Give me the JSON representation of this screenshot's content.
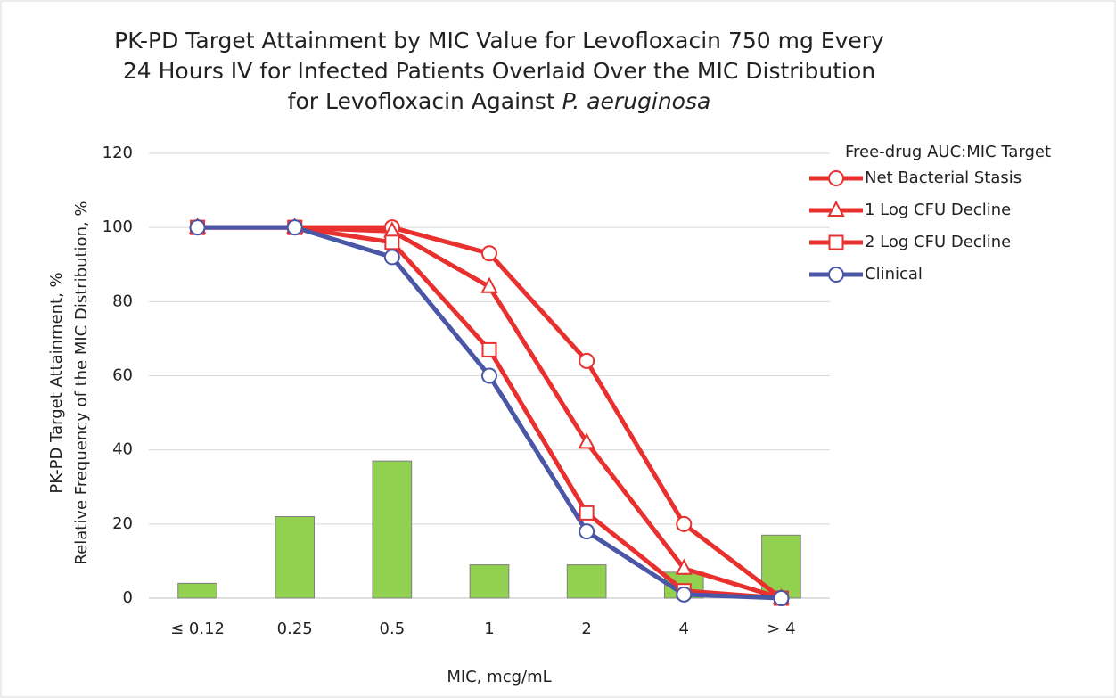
{
  "chart_data": {
    "type": "combo",
    "title": [
      "PK-PD Target Attainment by MIC Value for Levofloxacin 750 mg Every",
      "24 Hours IV for Infected Patients Overlaid Over the MIC Distribution",
      "for Levofloxacin Against "
    ],
    "title_italic": "P. aeruginosa",
    "x_label": "MIC, mcg/mL",
    "y_label": [
      "PK-PD Target Attainment, %",
      "Relative Frequency of the MIC Distribution, %"
    ],
    "categories": [
      "≤ 0.12",
      "0.25",
      "0.5",
      "1",
      "2",
      "4",
      "> 4"
    ],
    "bars": {
      "values": [
        4,
        22,
        37,
        9,
        9,
        7,
        17
      ],
      "color": "#92d050",
      "edge": "#7f7f7f"
    },
    "legend_title": "Free-drug AUC:MIC Target",
    "legend": "right",
    "series": [
      {
        "name": "Net Bacterial Stasis",
        "color": "#e8302f",
        "marker": "circle",
        "values": [
          100,
          100,
          100,
          93,
          64,
          20,
          0
        ]
      },
      {
        "name": "1 Log CFU Decline",
        "color": "#e8302f",
        "marker": "triangle",
        "values": [
          100,
          100,
          99,
          84,
          42,
          8,
          0
        ]
      },
      {
        "name": "2 Log CFU Decline",
        "color": "#e8302f",
        "marker": "square",
        "values": [
          100,
          100,
          96,
          67,
          23,
          2,
          0
        ]
      },
      {
        "name": "Clinical",
        "color": "#4a56a6",
        "marker": "circle",
        "values": [
          100,
          100,
          92,
          60,
          18,
          1,
          0
        ]
      }
    ],
    "ylim": [
      0,
      120
    ],
    "yticks": [
      0,
      20,
      40,
      60,
      80,
      100,
      120
    ],
    "grid": true
  }
}
